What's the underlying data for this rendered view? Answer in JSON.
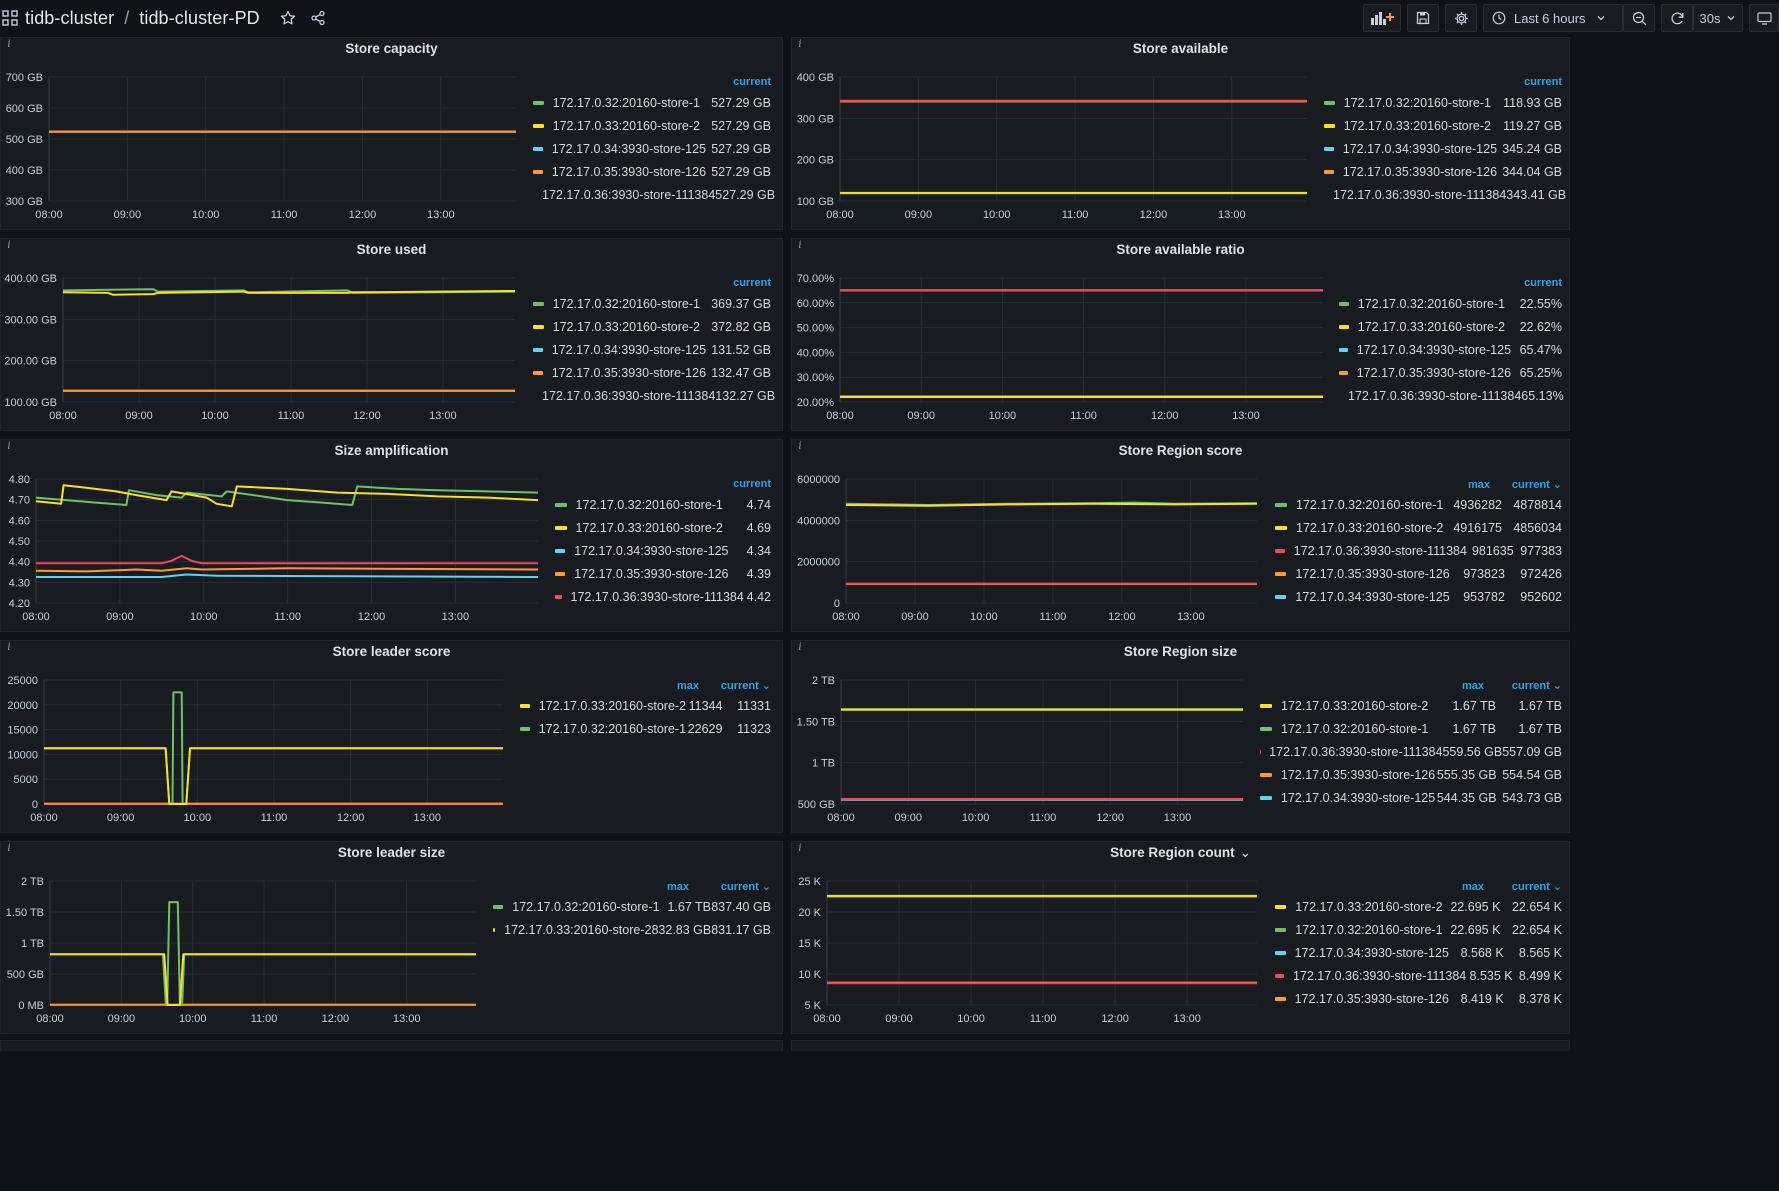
{
  "breadcrumb": {
    "folder": "tidb-cluster",
    "separator": "/",
    "dashboard": "tidb-cluster-PD"
  },
  "toolbar": {
    "time_range": "Last 6 hours",
    "refresh_interval": "30s",
    "icons": [
      "add-panel-icon",
      "save-icon",
      "settings-icon",
      "clock-icon",
      "zoom-out-icon",
      "refresh-icon",
      "tv-icon"
    ]
  },
  "colors": {
    "green": "#73bf69",
    "yellow": "#fade2a",
    "blue": "#5fd3f0",
    "orange": "#ff9830",
    "red": "#f2495c",
    "accent": "#33a2e5"
  },
  "time_axis": [
    "08:00",
    "09:00",
    "10:00",
    "11:00",
    "12:00",
    "13:00"
  ],
  "panels": [
    {
      "title": "Store capacity",
      "info": "i",
      "yticks": [
        "700 GB",
        "600 GB",
        "500 GB",
        "400 GB",
        "300 GB"
      ],
      "legend_headers": [
        "current"
      ],
      "legend": [
        {
          "name": "172.17.0.32:20160-store-1",
          "color": "green",
          "values": [
            "527.29 GB"
          ]
        },
        {
          "name": "172.17.0.33:20160-store-2",
          "color": "yellow",
          "values": [
            "527.29 GB"
          ]
        },
        {
          "name": "172.17.0.34:3930-store-125",
          "color": "blue",
          "values": [
            "527.29 GB"
          ]
        },
        {
          "name": "172.17.0.35:3930-store-126",
          "color": "orange",
          "values": [
            "527.29 GB"
          ]
        },
        {
          "name": "172.17.0.36:3930-store-111384",
          "color": "red",
          "values": [
            "527.29 GB"
          ]
        }
      ]
    },
    {
      "title": "Store available",
      "info": "i",
      "yticks": [
        "400 GB",
        "300 GB",
        "200 GB",
        "100 GB"
      ],
      "legend_headers": [
        "current"
      ],
      "legend": [
        {
          "name": "172.17.0.32:20160-store-1",
          "color": "green",
          "values": [
            "118.93 GB"
          ]
        },
        {
          "name": "172.17.0.33:20160-store-2",
          "color": "yellow",
          "values": [
            "119.27 GB"
          ]
        },
        {
          "name": "172.17.0.34:3930-store-125",
          "color": "blue",
          "values": [
            "345.24 GB"
          ]
        },
        {
          "name": "172.17.0.35:3930-store-126",
          "color": "orange",
          "values": [
            "344.04 GB"
          ]
        },
        {
          "name": "172.17.0.36:3930-store-111384",
          "color": "red",
          "values": [
            "343.41 GB"
          ]
        }
      ]
    },
    {
      "title": "Store used",
      "info": "i",
      "yticks": [
        "400.00 GB",
        "300.00 GB",
        "200.00 GB",
        "100.00 GB"
      ],
      "legend_headers": [
        "current"
      ],
      "legend": [
        {
          "name": "172.17.0.32:20160-store-1",
          "color": "green",
          "values": [
            "369.37 GB"
          ]
        },
        {
          "name": "172.17.0.33:20160-store-2",
          "color": "yellow",
          "values": [
            "372.82 GB"
          ]
        },
        {
          "name": "172.17.0.34:3930-store-125",
          "color": "blue",
          "values": [
            "131.52 GB"
          ]
        },
        {
          "name": "172.17.0.35:3930-store-126",
          "color": "orange",
          "values": [
            "132.47 GB"
          ]
        },
        {
          "name": "172.17.0.36:3930-store-111384",
          "color": "red",
          "values": [
            "132.27 GB"
          ]
        }
      ]
    },
    {
      "title": "Store available ratio",
      "info": "i",
      "yticks": [
        "70.00%",
        "60.00%",
        "50.00%",
        "40.00%",
        "30.00%",
        "20.00%"
      ],
      "legend_headers": [
        "current"
      ],
      "legend": [
        {
          "name": "172.17.0.32:20160-store-1",
          "color": "green",
          "values": [
            "22.55%"
          ]
        },
        {
          "name": "172.17.0.33:20160-store-2",
          "color": "yellow",
          "values": [
            "22.62%"
          ]
        },
        {
          "name": "172.17.0.34:3930-store-125",
          "color": "blue",
          "values": [
            "65.47%"
          ]
        },
        {
          "name": "172.17.0.35:3930-store-126",
          "color": "orange",
          "values": [
            "65.25%"
          ]
        },
        {
          "name": "172.17.0.36:3930-store-111384",
          "color": "red",
          "values": [
            "65.13%"
          ]
        }
      ]
    },
    {
      "title": "Size amplification",
      "info": "i",
      "yticks": [
        "4.80",
        "4.70",
        "4.60",
        "4.50",
        "4.40",
        "4.30",
        "4.20"
      ],
      "legend_headers": [
        "current"
      ],
      "legend": [
        {
          "name": "172.17.0.32:20160-store-1",
          "color": "green",
          "values": [
            "4.74"
          ]
        },
        {
          "name": "172.17.0.33:20160-store-2",
          "color": "yellow",
          "values": [
            "4.69"
          ]
        },
        {
          "name": "172.17.0.34:3930-store-125",
          "color": "blue",
          "values": [
            "4.34"
          ]
        },
        {
          "name": "172.17.0.35:3930-store-126",
          "color": "orange",
          "values": [
            "4.39"
          ]
        },
        {
          "name": "172.17.0.36:3930-store-111384",
          "color": "red",
          "values": [
            "4.42"
          ]
        }
      ]
    },
    {
      "title": "Store Region score",
      "info": "i",
      "yticks": [
        "6000000",
        "4000000",
        "2000000",
        "0"
      ],
      "legend_headers": [
        "max",
        "current"
      ],
      "sort_indicator": "⌄",
      "legend": [
        {
          "name": "172.17.0.32:20160-store-1",
          "color": "green",
          "values": [
            "4936282",
            "4878814"
          ]
        },
        {
          "name": "172.17.0.33:20160-store-2",
          "color": "yellow",
          "values": [
            "4916175",
            "4856034"
          ]
        },
        {
          "name": "172.17.0.36:3930-store-111384",
          "color": "red",
          "values": [
            "981635",
            "977383"
          ]
        },
        {
          "name": "172.17.0.35:3930-store-126",
          "color": "orange",
          "values": [
            "973823",
            "972426"
          ]
        },
        {
          "name": "172.17.0.34:3930-store-125",
          "color": "blue",
          "values": [
            "953782",
            "952602"
          ]
        }
      ]
    },
    {
      "title": "Store leader score",
      "info": "i",
      "yticks": [
        "25000",
        "20000",
        "15000",
        "10000",
        "5000",
        "0"
      ],
      "legend_headers": [
        "max",
        "current"
      ],
      "sort_indicator": "⌄",
      "legend": [
        {
          "name": "172.17.0.33:20160-store-2",
          "color": "yellow",
          "values": [
            "11344",
            "11331"
          ]
        },
        {
          "name": "172.17.0.32:20160-store-1",
          "color": "green",
          "values": [
            "22629",
            "11323"
          ]
        }
      ]
    },
    {
      "title": "Store Region size",
      "info": "i",
      "yticks": [
        "2 TB",
        "1.50 TB",
        "1 TB",
        "500 GB"
      ],
      "legend_headers": [
        "max",
        "current"
      ],
      "sort_indicator": "⌄",
      "legend": [
        {
          "name": "172.17.0.33:20160-store-2",
          "color": "yellow",
          "values": [
            "1.67 TB",
            "1.67 TB"
          ]
        },
        {
          "name": "172.17.0.32:20160-store-1",
          "color": "green",
          "values": [
            "1.67 TB",
            "1.67 TB"
          ]
        },
        {
          "name": "172.17.0.36:3930-store-111384",
          "color": "red",
          "values": [
            "559.56 GB",
            "557.09 GB"
          ]
        },
        {
          "name": "172.17.0.35:3930-store-126",
          "color": "orange",
          "values": [
            "555.35 GB",
            "554.54 GB"
          ]
        },
        {
          "name": "172.17.0.34:3930-store-125",
          "color": "blue",
          "values": [
            "544.35 GB",
            "543.73 GB"
          ]
        }
      ]
    },
    {
      "title": "Store leader size",
      "info": "i",
      "yticks": [
        "2 TB",
        "1.50 TB",
        "1 TB",
        "500 GB",
        "0 MB"
      ],
      "legend_headers": [
        "max",
        "current"
      ],
      "sort_indicator": "⌄",
      "legend": [
        {
          "name": "172.17.0.32:20160-store-1",
          "color": "green",
          "values": [
            "1.67 TB",
            "837.40 GB"
          ]
        },
        {
          "name": "172.17.0.33:20160-store-2",
          "color": "yellow",
          "values": [
            "832.83 GB",
            "831.17 GB"
          ]
        }
      ]
    },
    {
      "title": "Store Region count",
      "title_suffix": "⌄",
      "info": "i",
      "yticks": [
        "25 K",
        "20 K",
        "15 K",
        "10 K",
        "5 K"
      ],
      "legend_headers": [
        "max",
        "current"
      ],
      "sort_indicator": "⌄",
      "legend": [
        {
          "name": "172.17.0.33:20160-store-2",
          "color": "yellow",
          "values": [
            "22.695 K",
            "22.654 K"
          ]
        },
        {
          "name": "172.17.0.32:20160-store-1",
          "color": "green",
          "values": [
            "22.695 K",
            "22.654 K"
          ]
        },
        {
          "name": "172.17.0.34:3930-store-125",
          "color": "blue",
          "values": [
            "8.568 K",
            "8.565 K"
          ]
        },
        {
          "name": "172.17.0.36:3930-store-111384",
          "color": "red",
          "values": [
            "8.535 K",
            "8.499 K"
          ]
        },
        {
          "name": "172.17.0.35:3930-store-126",
          "color": "orange",
          "values": [
            "8.419 K",
            "8.378 K"
          ]
        }
      ]
    }
  ]
}
